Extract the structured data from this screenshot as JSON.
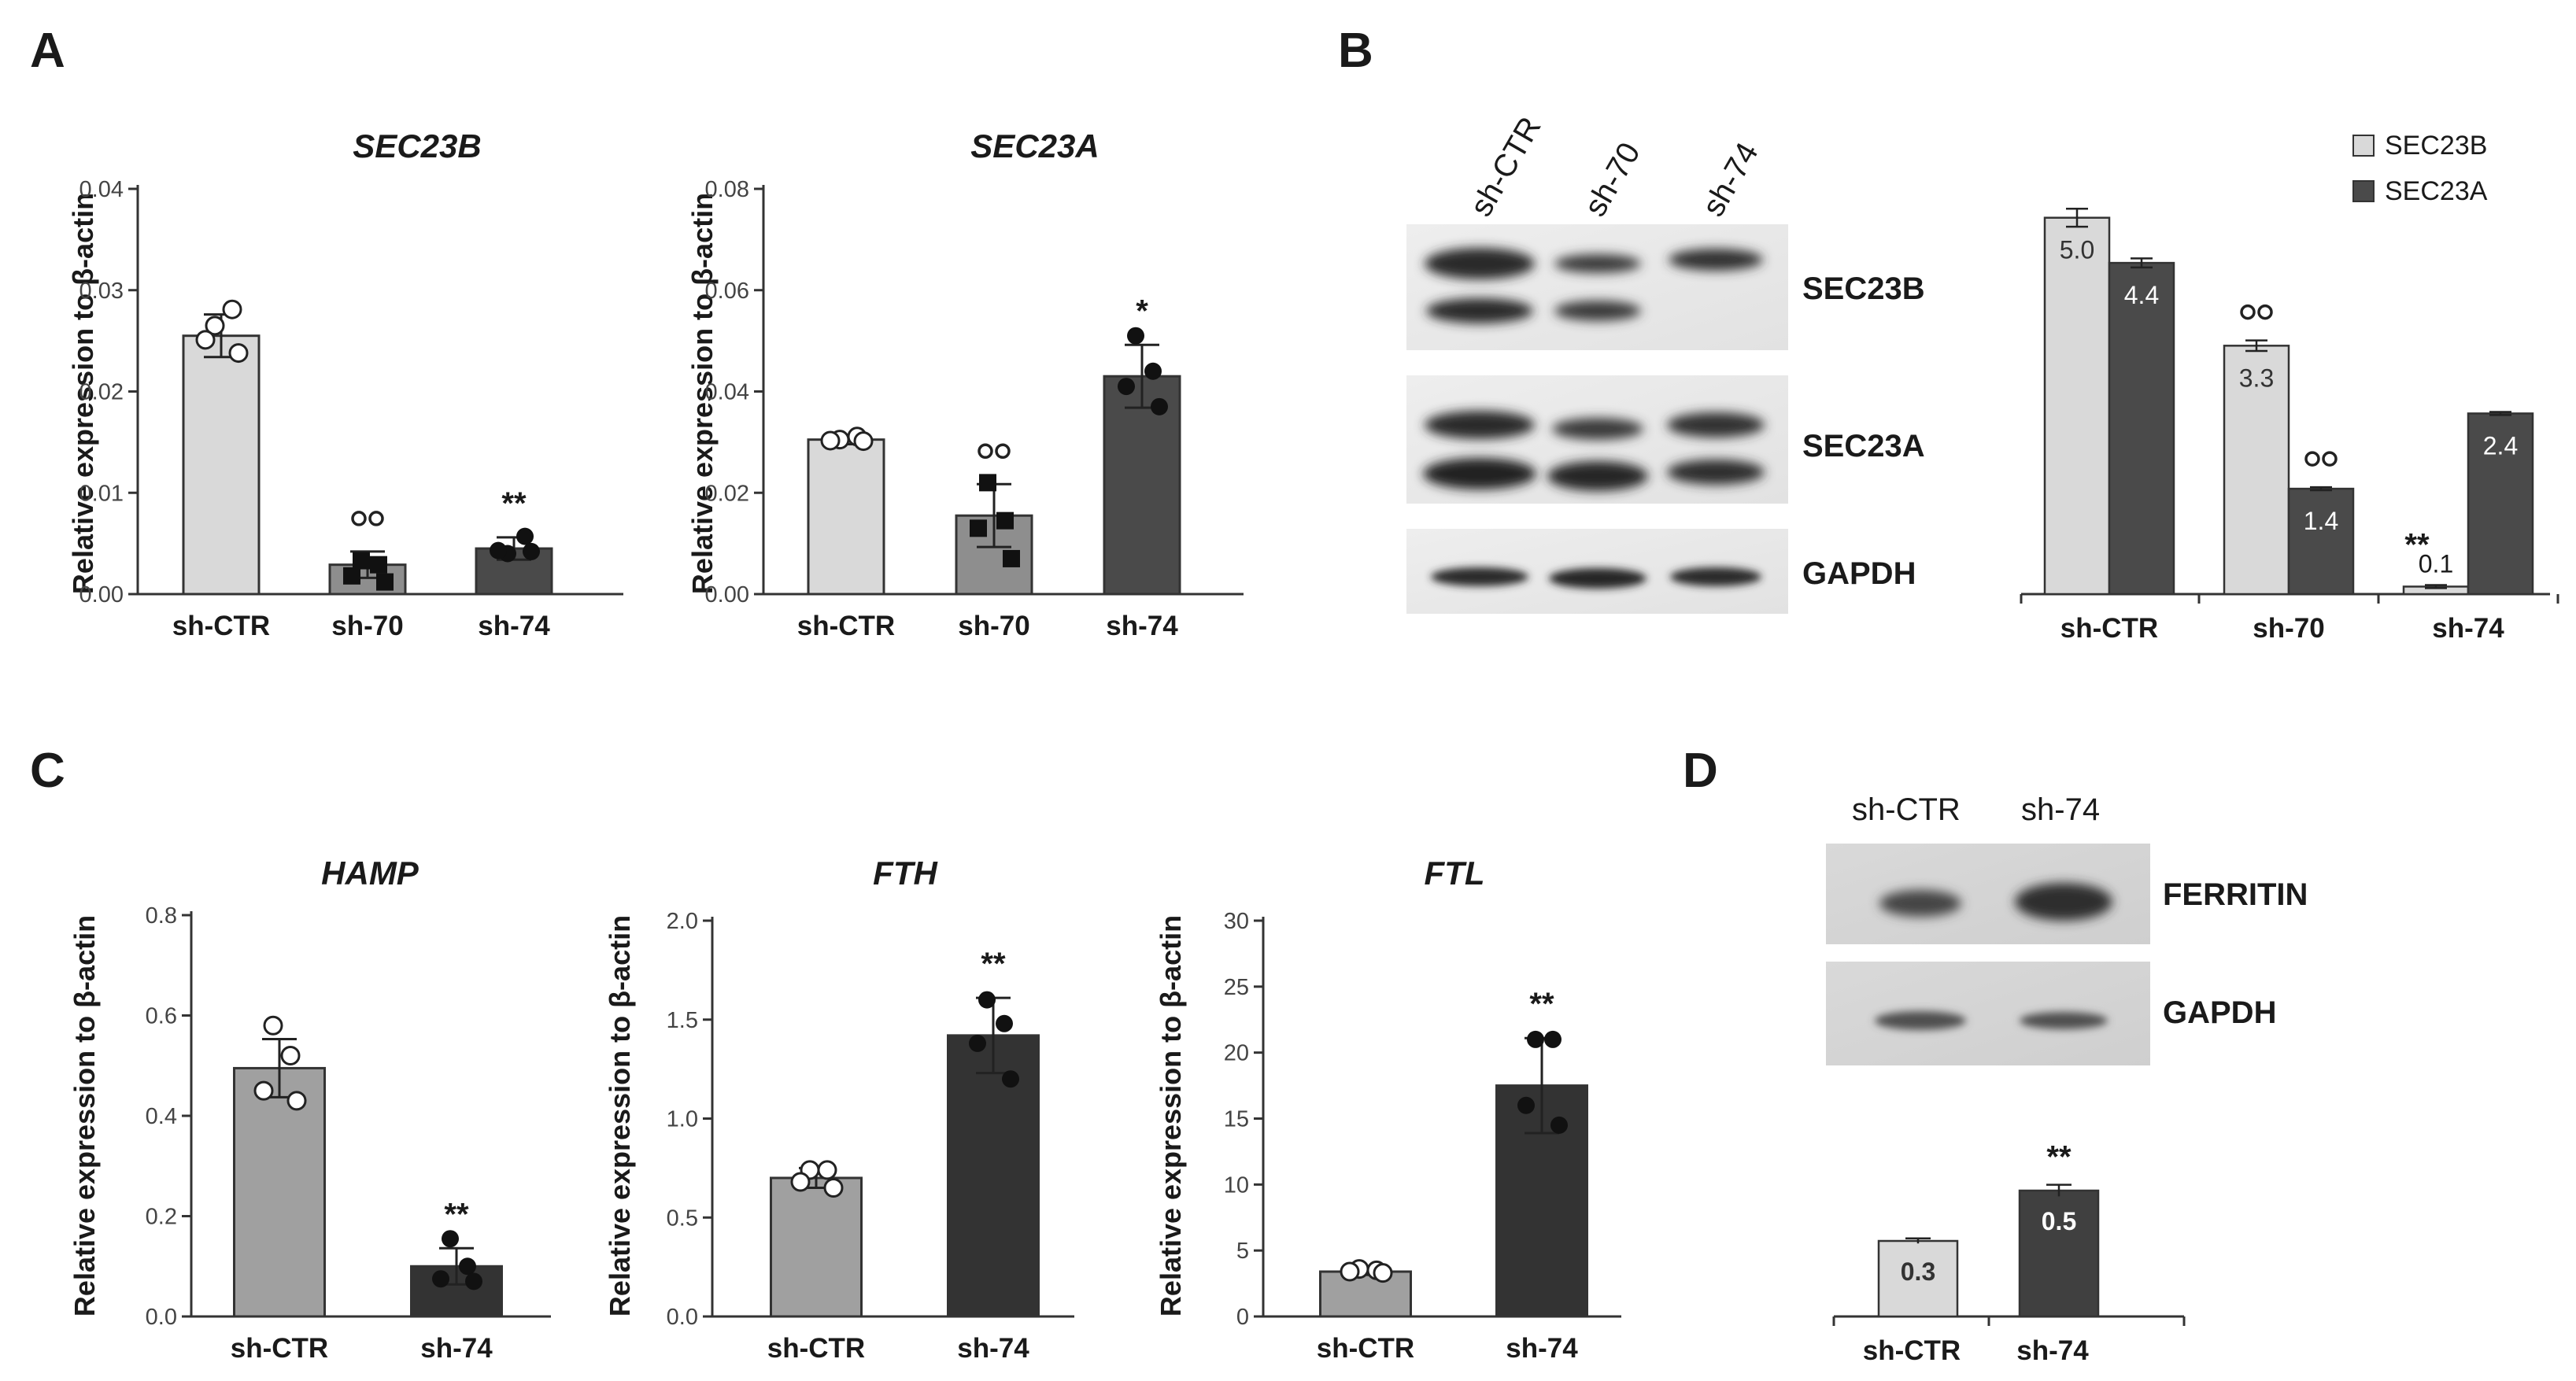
{
  "panel_letters": [
    "A",
    "B",
    "C",
    "D"
  ],
  "chart_data": [
    {
      "type": "bar",
      "id": "sec23b",
      "title": "SEC23B",
      "ylabel": "Relative expression to β-actin",
      "categories": [
        "sh-CTR",
        "sh-70",
        "sh-74"
      ],
      "values": [
        0.0255,
        0.0029,
        0.0045
      ],
      "errors": [
        0.0021,
        0.0013,
        0.0011
      ],
      "ylim": [
        0,
        0.04
      ],
      "yticks": [
        "0.00",
        "0.01",
        "0.02",
        "0.03",
        "0.04"
      ],
      "points": [
        [
          0.0265,
          0.0281,
          0.0251,
          0.0238
        ],
        [
          0.0033,
          0.0029,
          0.0018,
          0.0012
        ],
        [
          0.004,
          0.0057,
          0.0043,
          0.0042
        ]
      ],
      "markers": [
        "circle-open",
        "square",
        "circle"
      ],
      "annotations": [
        "",
        "∘∘",
        "**"
      ],
      "colors": [
        "#d9d9d9",
        "#8e8e8e",
        "#4a4a4a"
      ]
    },
    {
      "type": "bar",
      "id": "sec23a",
      "title": "SEC23A",
      "ylabel": "Relative expression to β-actin",
      "categories": [
        "sh-CTR",
        "sh-70",
        "sh-74"
      ],
      "values": [
        0.0305,
        0.0155,
        0.043
      ],
      "errors": [
        0.0009,
        0.0062,
        0.0062
      ],
      "ylim": [
        0,
        0.08
      ],
      "yticks": [
        "0.00",
        "0.02",
        "0.04",
        "0.06",
        "0.08"
      ],
      "points": [
        [
          0.0305,
          0.0311,
          0.0303,
          0.0302
        ],
        [
          0.022,
          0.0145,
          0.013,
          0.007
        ],
        [
          0.051,
          0.044,
          0.041,
          0.037
        ]
      ],
      "markers": [
        "circle-open",
        "square",
        "circle"
      ],
      "annotations": [
        "",
        "∘∘",
        "*"
      ],
      "colors": [
        "#d9d9d9",
        "#8e8e8e",
        "#4a4a4a"
      ]
    },
    {
      "type": "bar",
      "id": "western_b",
      "title": "",
      "ylabel": "",
      "categories": [
        "sh-CTR",
        "sh-70",
        "sh-74"
      ],
      "series": [
        {
          "name": "SEC23B",
          "values": [
            5.0,
            3.3,
            0.1
          ],
          "errors": [
            0.12,
            0.07,
            0.02
          ],
          "labels": [
            "5.0",
            "3.3",
            "0.1"
          ]
        },
        {
          "name": "SEC23A",
          "values": [
            4.4,
            1.4,
            2.4
          ],
          "errors": [
            0.06,
            0.02,
            0.02
          ],
          "labels": [
            "4.4",
            "1.4",
            "2.4"
          ]
        }
      ],
      "ylim": [
        0,
        5.3
      ],
      "annotations": [
        "",
        "∘∘|∘∘",
        "**|"
      ],
      "colors": [
        "#d9d9d9",
        "#4a4a4a"
      ],
      "legend": "top-right"
    },
    {
      "type": "bar",
      "id": "hamp",
      "title": "HAMP",
      "ylabel": "Relative expression to β-actin",
      "categories": [
        "sh-CTR",
        "sh-74"
      ],
      "values": [
        0.495,
        0.1
      ],
      "errors": [
        0.058,
        0.036
      ],
      "ylim": [
        0,
        0.8
      ],
      "yticks": [
        "0.0",
        "0.2",
        "0.4",
        "0.6",
        "0.8"
      ],
      "points": [
        [
          0.58,
          0.52,
          0.45,
          0.43
        ],
        [
          0.155,
          0.1,
          0.075,
          0.07
        ]
      ],
      "markers": [
        "circle-open",
        "circle"
      ],
      "annotations": [
        "",
        "**"
      ],
      "colors": [
        "#a0a0a0",
        "#333333"
      ]
    },
    {
      "type": "bar",
      "id": "fth",
      "title": "FTH",
      "ylabel": "Relative expression to β-actin",
      "categories": [
        "sh-CTR",
        "sh-74"
      ],
      "values": [
        0.7,
        1.42
      ],
      "errors": [
        0.05,
        0.19
      ],
      "ylim": [
        0,
        2.0
      ],
      "yticks": [
        "0.0",
        "0.5",
        "1.0",
        "1.5",
        "2.0"
      ],
      "points": [
        [
          0.74,
          0.74,
          0.68,
          0.65
        ],
        [
          1.6,
          1.48,
          1.38,
          1.2
        ]
      ],
      "markers": [
        "circle-open",
        "circle"
      ],
      "annotations": [
        "",
        "**"
      ],
      "colors": [
        "#a0a0a0",
        "#333333"
      ]
    },
    {
      "type": "bar",
      "id": "ftl",
      "title": "FTL",
      "ylabel": "Relative expression to β-actin",
      "categories": [
        "sh-CTR",
        "sh-74"
      ],
      "values": [
        3.4,
        17.5
      ],
      "errors": [
        0.25,
        3.6
      ],
      "ylim": [
        0,
        30
      ],
      "yticks": [
        "0",
        "5",
        "10",
        "15",
        "20",
        "25",
        "30"
      ],
      "points": [
        [
          3.6,
          3.5,
          3.4,
          3.3
        ],
        [
          21.0,
          21.0,
          16.0,
          14.5
        ]
      ],
      "markers": [
        "circle-open",
        "circle"
      ],
      "annotations": [
        "",
        "**"
      ],
      "colors": [
        "#a0a0a0",
        "#333333"
      ]
    },
    {
      "type": "bar",
      "id": "western_d",
      "title": "",
      "ylabel": "",
      "categories": [
        "sh-CTR",
        "sh-74"
      ],
      "values": [
        0.3,
        0.5
      ],
      "labels": [
        "0.3",
        "0.5"
      ],
      "errors": [
        0.01,
        0.023
      ],
      "ylim": [
        0,
        0.9
      ],
      "annotations": [
        "",
        "**"
      ],
      "colors": [
        "#d9d9d9",
        "#404040"
      ]
    }
  ],
  "blot_b": {
    "lanes": [
      "sh-CTR",
      "sh-70",
      "sh-74"
    ],
    "bands": [
      "SEC23B",
      "SEC23A",
      "GAPDH"
    ]
  },
  "blot_d": {
    "lanes": [
      "sh-CTR",
      "sh-74"
    ],
    "bands": [
      "FERRITIN",
      "GAPDH"
    ]
  }
}
